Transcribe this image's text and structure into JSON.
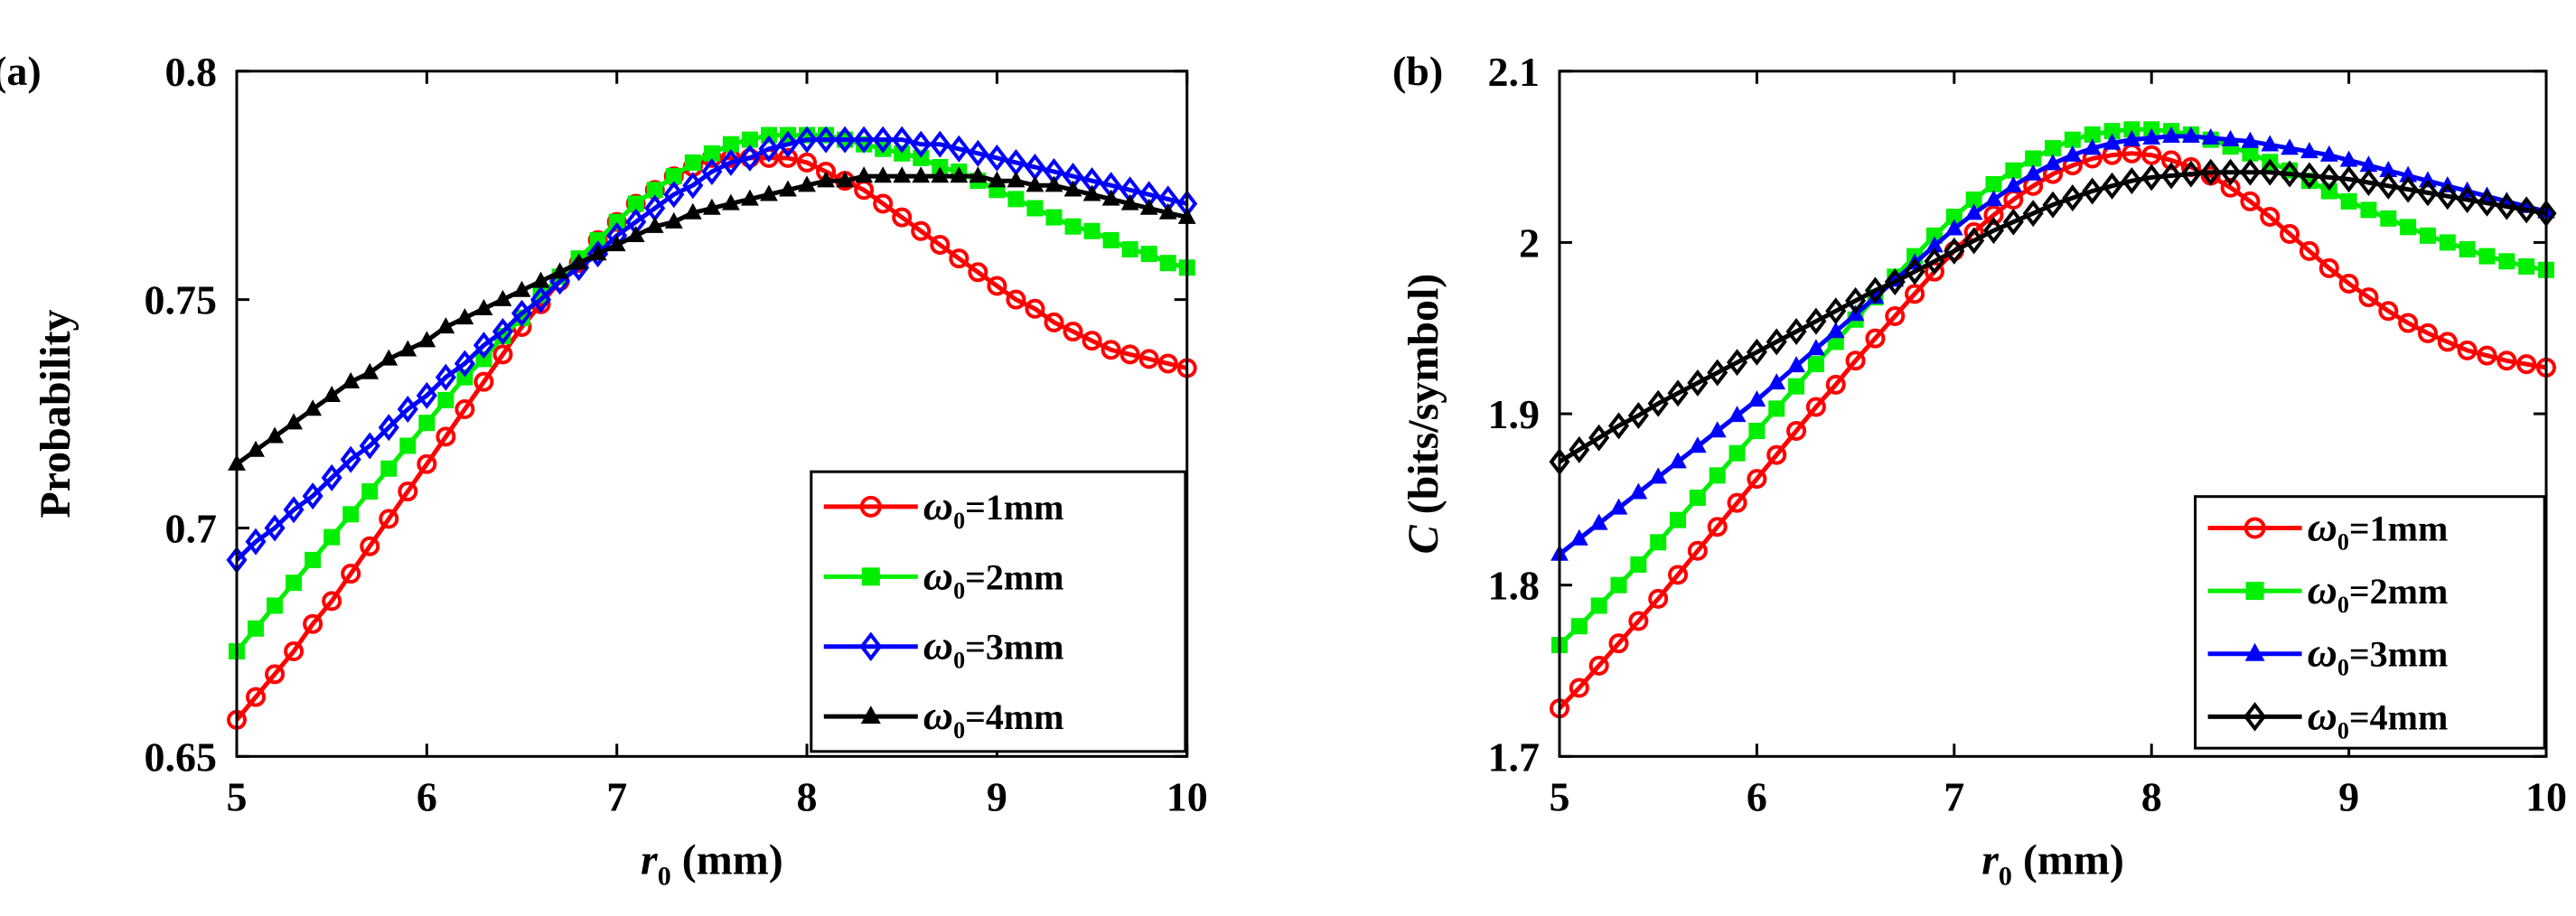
{
  "chart_data": [
    {
      "type": "line",
      "panel_label": "(a)",
      "title": "",
      "xlabel_var": "r",
      "xlabel_sub": "0",
      "xlabel_unit": " (mm)",
      "ylabel": "Probability",
      "xlim": [
        5,
        10
      ],
      "ylim": [
        0.65,
        0.8
      ],
      "xticks": [
        "5",
        "6",
        "7",
        "8",
        "9",
        "10"
      ],
      "yticks": [
        "0.65",
        "0.7",
        "0.75",
        "0.8"
      ],
      "legend_position": "bottom-right",
      "x": [
        5.0,
        5.1,
        5.2,
        5.3,
        5.4,
        5.5,
        5.6,
        5.7,
        5.8,
        5.9,
        6.0,
        6.1,
        6.2,
        6.3,
        6.4,
        6.5,
        6.6,
        6.7,
        6.8,
        6.9,
        7.0,
        7.1,
        7.2,
        7.3,
        7.4,
        7.5,
        7.6,
        7.7,
        7.8,
        7.9,
        8.0,
        8.1,
        8.2,
        8.3,
        8.4,
        8.5,
        8.6,
        8.7,
        8.8,
        8.9,
        9.0,
        9.1,
        9.2,
        9.3,
        9.4,
        9.5,
        9.6,
        9.7,
        9.8,
        9.9,
        10.0
      ],
      "series": [
        {
          "name": "ω0=1mm",
          "legend_sym": "ω",
          "legend_sub": "0",
          "legend_rest": "=1mm",
          "color": "#ff0000",
          "marker": "circle",
          "values": [
            0.658,
            0.663,
            0.668,
            0.673,
            0.679,
            0.684,
            0.69,
            0.696,
            0.702,
            0.708,
            0.714,
            0.72,
            0.726,
            0.732,
            0.738,
            0.744,
            0.749,
            0.754,
            0.758,
            0.763,
            0.767,
            0.771,
            0.774,
            0.777,
            0.779,
            0.781,
            0.781,
            0.781,
            0.781,
            0.781,
            0.78,
            0.778,
            0.776,
            0.774,
            0.771,
            0.768,
            0.765,
            0.762,
            0.759,
            0.756,
            0.753,
            0.75,
            0.748,
            0.745,
            0.743,
            0.741,
            0.739,
            0.738,
            0.737,
            0.736,
            0.735
          ]
        },
        {
          "name": "ω0=2mm",
          "legend_sym": "ω",
          "legend_sub": "0",
          "legend_rest": "=2mm",
          "color": "#00ee00",
          "marker": "square",
          "values": [
            0.673,
            0.678,
            0.683,
            0.688,
            0.693,
            0.698,
            0.703,
            0.708,
            0.713,
            0.718,
            0.723,
            0.728,
            0.733,
            0.737,
            0.742,
            0.746,
            0.751,
            0.755,
            0.759,
            0.763,
            0.767,
            0.771,
            0.774,
            0.777,
            0.78,
            0.782,
            0.784,
            0.785,
            0.786,
            0.786,
            0.786,
            0.786,
            0.785,
            0.784,
            0.783,
            0.782,
            0.781,
            0.779,
            0.778,
            0.776,
            0.774,
            0.772,
            0.77,
            0.768,
            0.766,
            0.765,
            0.763,
            0.761,
            0.76,
            0.758,
            0.757
          ]
        },
        {
          "name": "ω0=3mm",
          "legend_sym": "ω",
          "legend_sub": "0",
          "legend_rest": "=3mm",
          "color": "#0000ff",
          "marker": "diamond",
          "values": [
            0.693,
            0.697,
            0.7,
            0.704,
            0.707,
            0.711,
            0.715,
            0.718,
            0.722,
            0.726,
            0.729,
            0.733,
            0.736,
            0.74,
            0.743,
            0.747,
            0.75,
            0.754,
            0.757,
            0.76,
            0.764,
            0.767,
            0.77,
            0.773,
            0.775,
            0.778,
            0.78,
            0.781,
            0.783,
            0.784,
            0.785,
            0.785,
            0.785,
            0.785,
            0.785,
            0.785,
            0.784,
            0.784,
            0.783,
            0.782,
            0.781,
            0.78,
            0.779,
            0.778,
            0.777,
            0.776,
            0.775,
            0.774,
            0.773,
            0.772,
            0.771
          ]
        },
        {
          "name": "ω0=4mm",
          "legend_sym": "ω",
          "legend_sub": "0",
          "legend_rest": "=4mm",
          "color": "#000000",
          "marker": "triangle",
          "values": [
            0.714,
            0.717,
            0.72,
            0.723,
            0.726,
            0.729,
            0.732,
            0.734,
            0.737,
            0.739,
            0.741,
            0.744,
            0.746,
            0.748,
            0.75,
            0.752,
            0.754,
            0.756,
            0.758,
            0.76,
            0.762,
            0.764,
            0.766,
            0.767,
            0.769,
            0.77,
            0.771,
            0.772,
            0.773,
            0.774,
            0.775,
            0.776,
            0.776,
            0.777,
            0.777,
            0.777,
            0.777,
            0.777,
            0.777,
            0.777,
            0.776,
            0.776,
            0.775,
            0.775,
            0.774,
            0.773,
            0.772,
            0.771,
            0.77,
            0.769,
            0.768
          ]
        }
      ]
    },
    {
      "type": "line",
      "panel_label": "(b)",
      "title": "",
      "xlabel_var": "r",
      "xlabel_sub": "0",
      "xlabel_unit": " (mm)",
      "ylabel_var": "C",
      "ylabel_unit": " (bits/symbol)",
      "xlim": [
        5,
        10
      ],
      "ylim": [
        1.7,
        2.1
      ],
      "xticks": [
        "5",
        "6",
        "7",
        "8",
        "9",
        "10"
      ],
      "yticks": [
        "1.7",
        "1.8",
        "1.9",
        "2",
        "2.1"
      ],
      "legend_position": "bottom-right",
      "x": [
        5.0,
        5.1,
        5.2,
        5.3,
        5.4,
        5.5,
        5.6,
        5.7,
        5.8,
        5.9,
        6.0,
        6.1,
        6.2,
        6.3,
        6.4,
        6.5,
        6.6,
        6.7,
        6.8,
        6.9,
        7.0,
        7.1,
        7.2,
        7.3,
        7.4,
        7.5,
        7.6,
        7.7,
        7.8,
        7.9,
        8.0,
        8.1,
        8.2,
        8.3,
        8.4,
        8.5,
        8.6,
        8.7,
        8.8,
        8.9,
        9.0,
        9.1,
        9.2,
        9.3,
        9.4,
        9.5,
        9.6,
        9.7,
        9.8,
        9.9,
        10.0
      ],
      "series": [
        {
          "name": "ω0=1mm",
          "legend_sym": "ω",
          "legend_sub": "0",
          "legend_rest": "=1mm",
          "color": "#ff0000",
          "marker": "circle",
          "values": [
            1.728,
            1.74,
            1.753,
            1.766,
            1.779,
            1.792,
            1.806,
            1.82,
            1.834,
            1.848,
            1.862,
            1.876,
            1.89,
            1.904,
            1.917,
            1.931,
            1.944,
            1.957,
            1.97,
            1.983,
            1.995,
            2.006,
            2.016,
            2.025,
            2.033,
            2.04,
            2.045,
            2.049,
            2.051,
            2.052,
            2.051,
            2.048,
            2.044,
            2.039,
            2.032,
            2.024,
            2.015,
            2.005,
            1.995,
            1.985,
            1.976,
            1.968,
            1.96,
            1.953,
            1.947,
            1.942,
            1.937,
            1.934,
            1.931,
            1.929,
            1.927
          ]
        },
        {
          "name": "ω0=2mm",
          "legend_sym": "ω",
          "legend_sub": "0",
          "legend_rest": "=2mm",
          "color": "#00ee00",
          "marker": "square",
          "values": [
            1.765,
            1.776,
            1.788,
            1.8,
            1.812,
            1.825,
            1.838,
            1.851,
            1.864,
            1.877,
            1.89,
            1.903,
            1.916,
            1.929,
            1.942,
            1.955,
            1.968,
            1.98,
            1.992,
            2.004,
            2.015,
            2.025,
            2.034,
            2.042,
            2.049,
            2.055,
            2.06,
            2.063,
            2.065,
            2.066,
            2.066,
            2.065,
            2.063,
            2.06,
            2.056,
            2.052,
            2.047,
            2.042,
            2.036,
            2.03,
            2.024,
            2.019,
            2.014,
            2.009,
            2.004,
            2.0,
            1.996,
            1.992,
            1.989,
            1.986,
            1.984
          ]
        },
        {
          "name": "ω0=3mm",
          "legend_sym": "ω",
          "legend_sub": "0",
          "legend_rest": "=3mm",
          "color": "#0000ff",
          "marker": "triangle",
          "values": [
            1.818,
            1.827,
            1.836,
            1.845,
            1.854,
            1.863,
            1.872,
            1.881,
            1.89,
            1.899,
            1.908,
            1.918,
            1.928,
            1.938,
            1.948,
            1.958,
            1.968,
            1.978,
            1.988,
            1.998,
            2.008,
            2.017,
            2.025,
            2.033,
            2.04,
            2.046,
            2.051,
            2.055,
            2.058,
            2.06,
            2.061,
            2.062,
            2.062,
            2.061,
            2.06,
            2.059,
            2.057,
            2.055,
            2.053,
            2.051,
            2.048,
            2.045,
            2.042,
            2.039,
            2.036,
            2.033,
            2.03,
            2.027,
            2.024,
            2.021,
            2.018
          ]
        },
        {
          "name": "ω0=4mm",
          "legend_sym": "ω",
          "legend_sub": "0",
          "legend_rest": "=4mm",
          "color": "#000000",
          "marker": "diamond",
          "values": [
            1.872,
            1.879,
            1.886,
            1.893,
            1.899,
            1.906,
            1.912,
            1.918,
            1.924,
            1.93,
            1.936,
            1.942,
            1.948,
            1.954,
            1.96,
            1.966,
            1.972,
            1.977,
            1.983,
            1.989,
            1.995,
            2.001,
            2.007,
            2.012,
            2.017,
            2.022,
            2.026,
            2.03,
            2.033,
            2.036,
            2.038,
            2.039,
            2.04,
            2.041,
            2.041,
            2.041,
            2.041,
            2.04,
            2.039,
            2.038,
            2.037,
            2.035,
            2.033,
            2.031,
            2.029,
            2.027,
            2.025,
            2.023,
            2.021,
            2.019,
            2.017
          ]
        }
      ]
    }
  ]
}
